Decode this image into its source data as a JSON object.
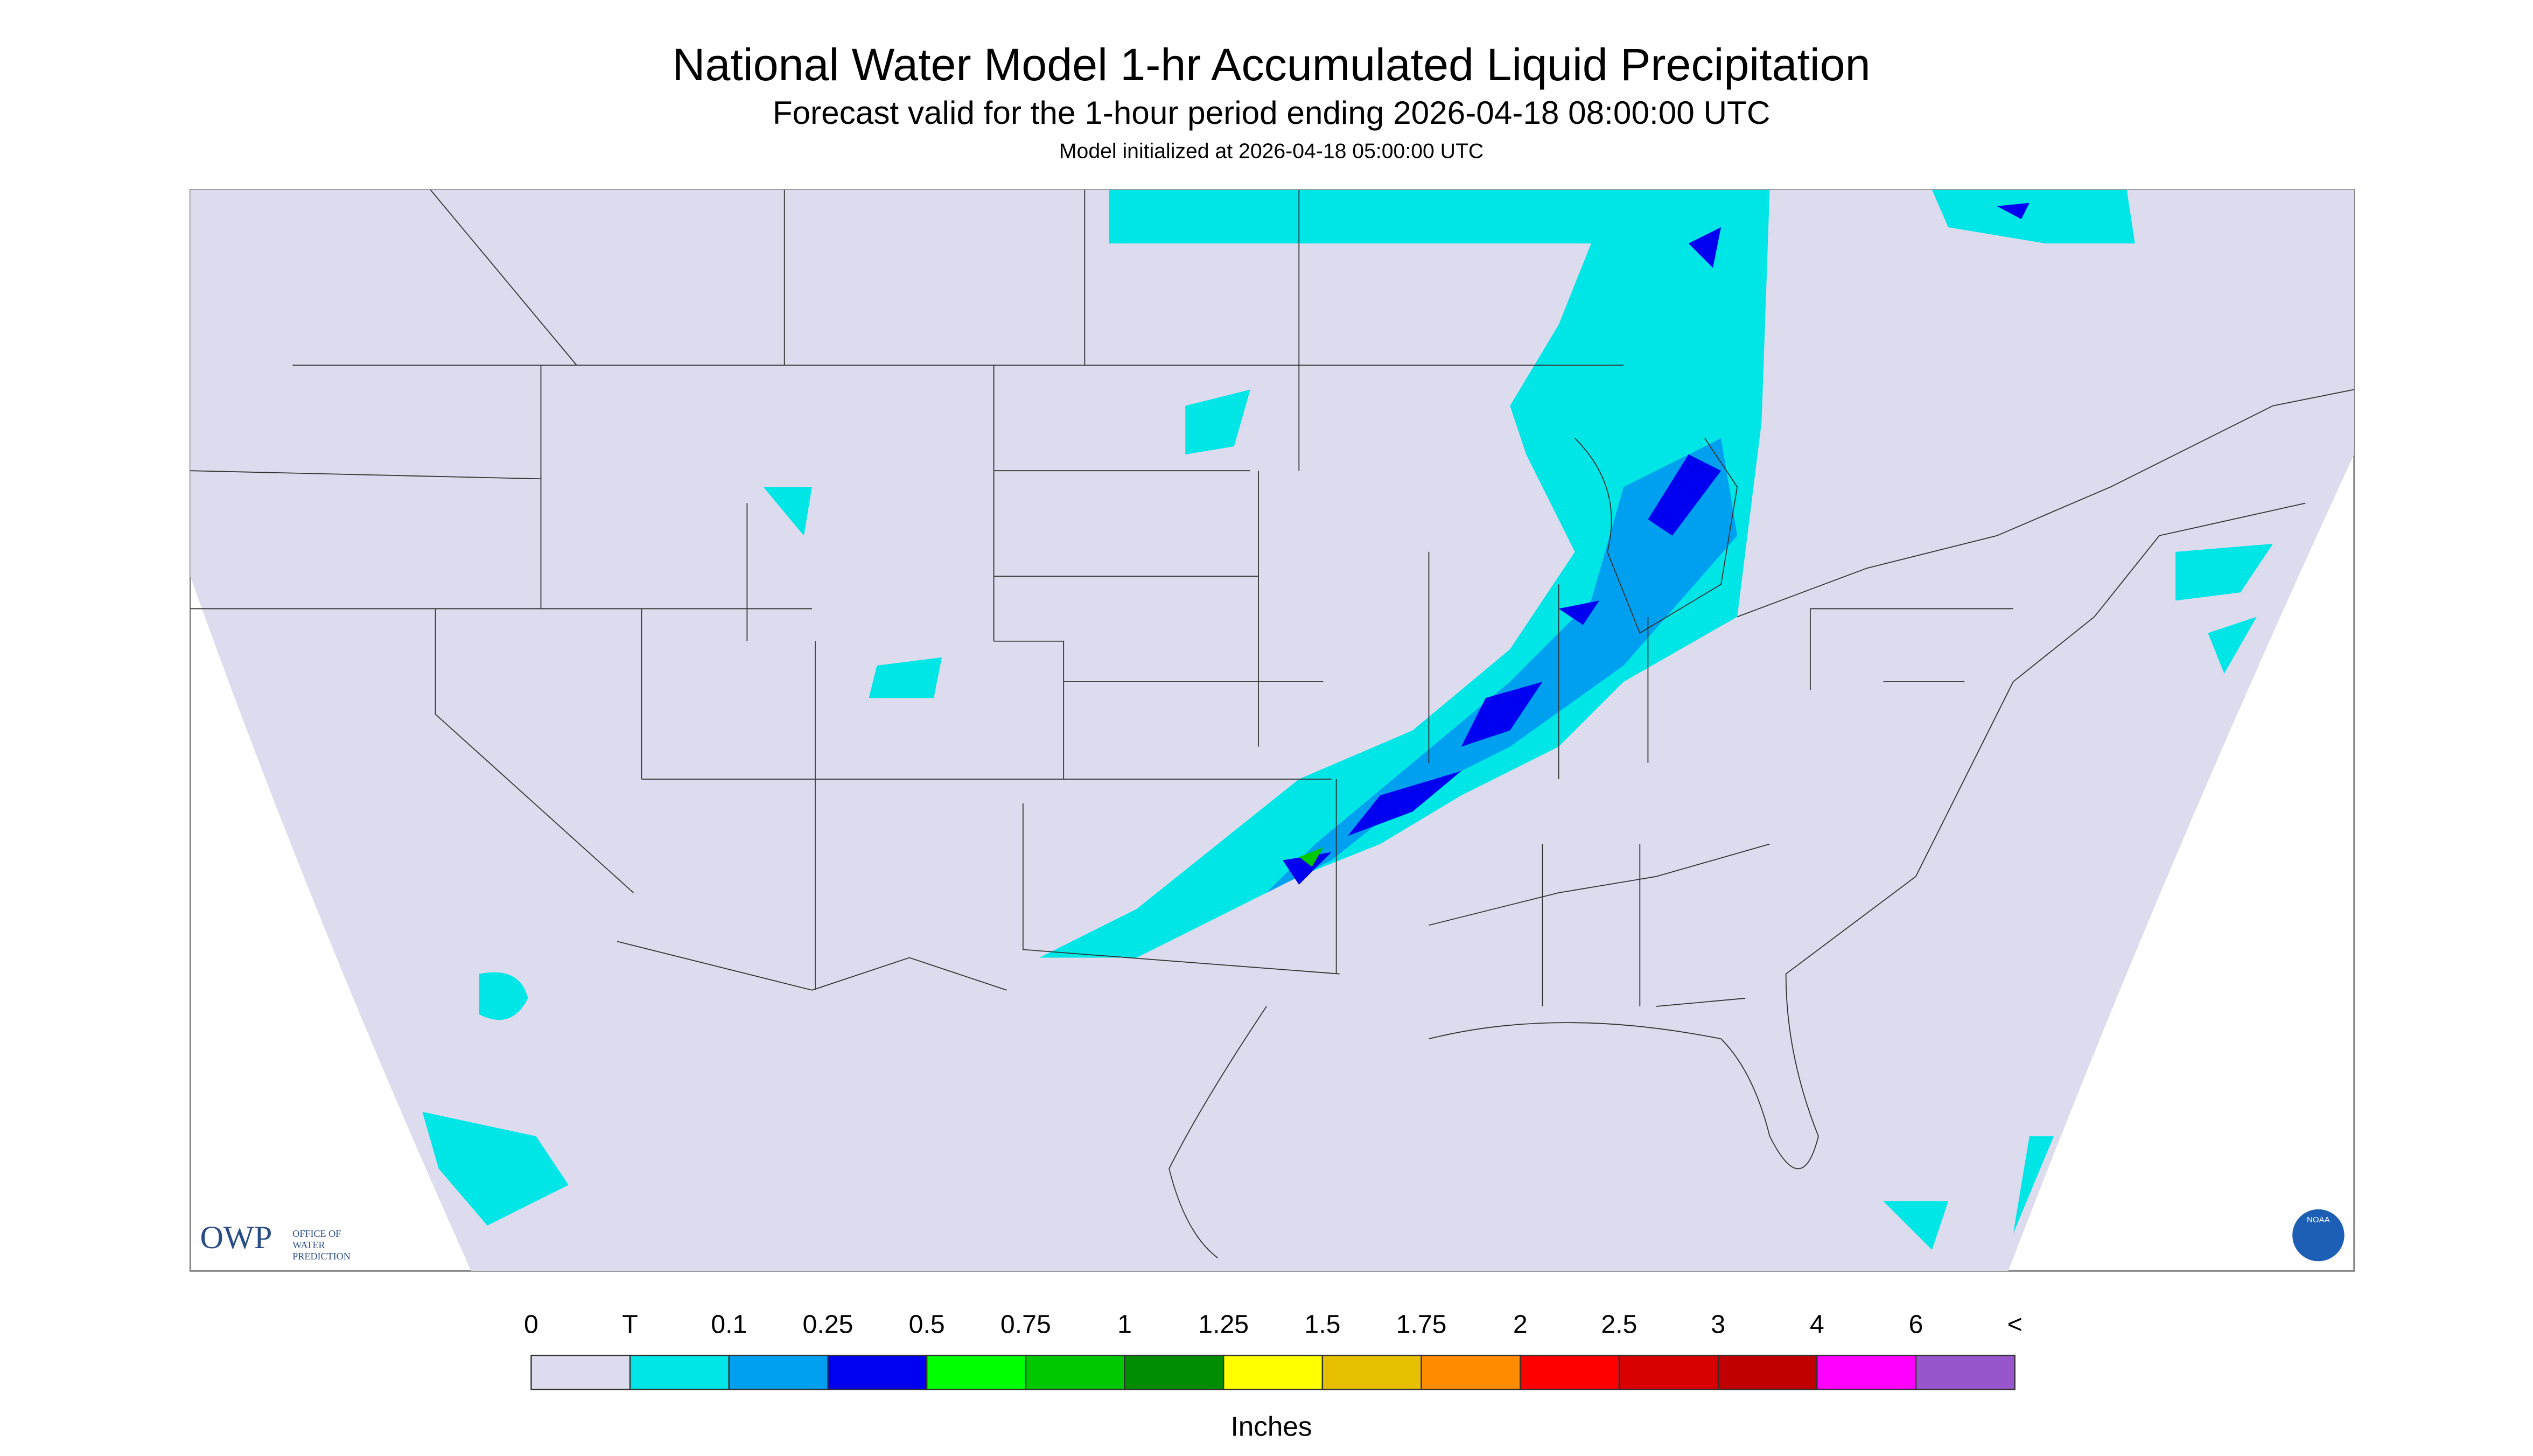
{
  "header": {
    "title": "National Water Model 1-hr Accumulated Liquid Precipitation",
    "subtitle": "Forecast valid for the 1-hour period ending 2026-04-18 08:00:00 UTC",
    "init": "Model initialized at 2026-04-18 05:00:00 UTC"
  },
  "logo": {
    "owp": "OWP",
    "office": [
      "OFFICE OF",
      "WATER",
      "PREDICTION"
    ],
    "noaa": "NOAA"
  },
  "legend": {
    "labels": [
      "0",
      "T",
      "0.1",
      "0.25",
      "0.5",
      "0.75",
      "1",
      "1.25",
      "1.5",
      "1.75",
      "2",
      "2.5",
      "3",
      "4",
      "6",
      "<"
    ],
    "colors": [
      "#dcdcee",
      "#00e6e6",
      "#00a0f0",
      "#0000f0",
      "#00ff00",
      "#00c800",
      "#008c00",
      "#ffff00",
      "#e6bf00",
      "#ff8c00",
      "#ff0000",
      "#d80000",
      "#c00000",
      "#ff00ff",
      "#9955cc"
    ],
    "unit": "Inches"
  }
}
